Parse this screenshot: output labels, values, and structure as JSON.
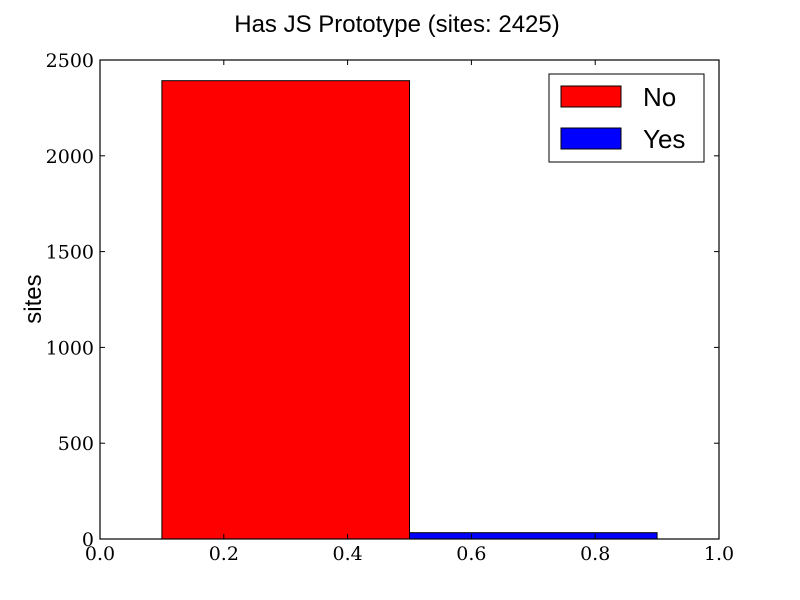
{
  "chart_data": {
    "type": "bar",
    "title": "Has JS Prototype (sites: 2425)",
    "xlabel": "",
    "ylabel": "sites",
    "xlim": [
      0.0,
      1.0
    ],
    "ylim": [
      0,
      2500
    ],
    "x_ticks": [
      "0.0",
      "0.2",
      "0.4",
      "0.6",
      "0.8",
      "1.0"
    ],
    "y_ticks": [
      "0",
      "500",
      "1000",
      "1500",
      "2000",
      "2500"
    ],
    "grid": false,
    "legend_position": "top-right",
    "series": [
      {
        "name": "No",
        "color": "#ff0000",
        "x_start": 0.1,
        "x_end": 0.5,
        "value": 2392
      },
      {
        "name": "Yes",
        "color": "#0000ff",
        "x_start": 0.5,
        "x_end": 0.9,
        "value": 33
      }
    ]
  }
}
